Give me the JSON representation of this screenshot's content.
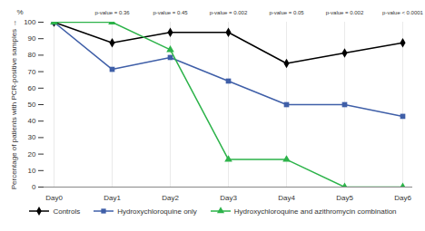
{
  "chart_data": {
    "type": "line",
    "ylabel": "Percentage of patients with PCR-positive samples",
    "y_unit": "%",
    "categories": [
      "Day0",
      "Day1",
      "Day2",
      "Day3",
      "Day4",
      "Day5",
      "Day6"
    ],
    "series": [
      {
        "name": "Controls",
        "color": "#000000",
        "marker": "diamond",
        "values": [
          100,
          87.5,
          93.8,
          93.8,
          75,
          81.3,
          87.5
        ]
      },
      {
        "name": "Hydroxychloroquine only",
        "color": "#3f5fa8",
        "marker": "square",
        "values": [
          100,
          71.4,
          78.6,
          64.3,
          50,
          50,
          42.9
        ]
      },
      {
        "name": "Hydroxychloroquine and azithromycin combination",
        "color": "#2db34a",
        "marker": "triangle",
        "values": [
          100,
          100,
          83.3,
          16.7,
          16.7,
          0,
          0
        ]
      }
    ],
    "annotations": [
      {
        "x": "Day1",
        "text": "p-value = 0.36"
      },
      {
        "x": "Day2",
        "text": "p-value = 0.45"
      },
      {
        "x": "Day3",
        "text": "p-value = 0.002"
      },
      {
        "x": "Day4",
        "text": "p-value = 0.05"
      },
      {
        "x": "Day5",
        "text": "p-value = 0.002"
      },
      {
        "x": "Day6",
        "text": "p-value < 0.0001"
      }
    ],
    "ylim": [
      0,
      100
    ],
    "yticks": [
      0,
      10,
      20,
      30,
      40,
      50,
      60,
      70,
      80,
      90,
      100
    ],
    "grid": true,
    "legend": "bottom"
  }
}
